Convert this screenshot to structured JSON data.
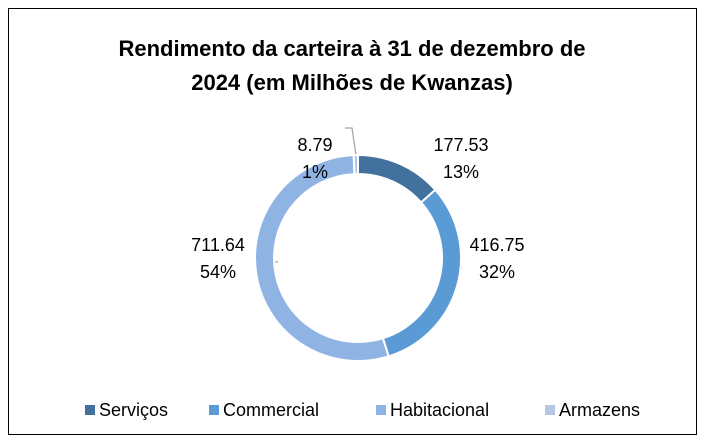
{
  "chart_data": {
    "type": "donut",
    "title": "Rendimento da carteira à 31 de dezembro de",
    "title_line2": "2024 (em Milhões de Kwanzas)",
    "categories": [
      "Serviços",
      "Commercial",
      "Habitacional",
      "Armazens"
    ],
    "values": [
      177.53,
      416.75,
      711.64,
      8.79
    ],
    "percent_labels": [
      "13%",
      "32%",
      "54%",
      "1%"
    ],
    "colors": [
      "#41719c",
      "#5b9bd5",
      "#8fb4e3",
      "#b4c7e7"
    ],
    "legend": "bottom"
  }
}
